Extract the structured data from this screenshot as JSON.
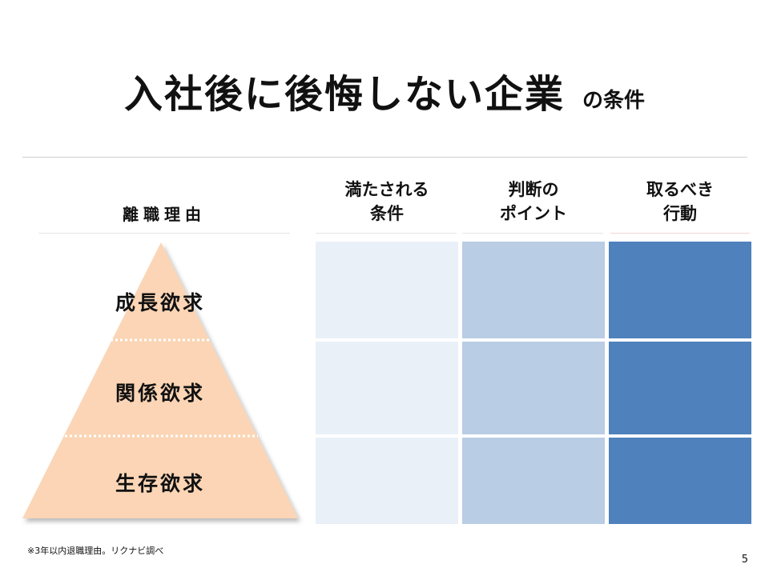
{
  "title": {
    "main": "入社後に後悔しない企業",
    "sub": "の条件"
  },
  "columns": {
    "reason": "離職理由",
    "col1": "満たされる\n条件",
    "col2": "判断の\nポイント",
    "col3": "取るべき\n行動"
  },
  "pyramid": {
    "levels": [
      "成長欲求",
      "関係欲求",
      "生存欲求"
    ],
    "fill": "#fbd5b5"
  },
  "grid_colors": [
    "#eaf0f8",
    "#b9cde4",
    "#4f81bd"
  ],
  "footnote": "※3年以内退職理由。リクナビ調べ",
  "page_number": "5"
}
